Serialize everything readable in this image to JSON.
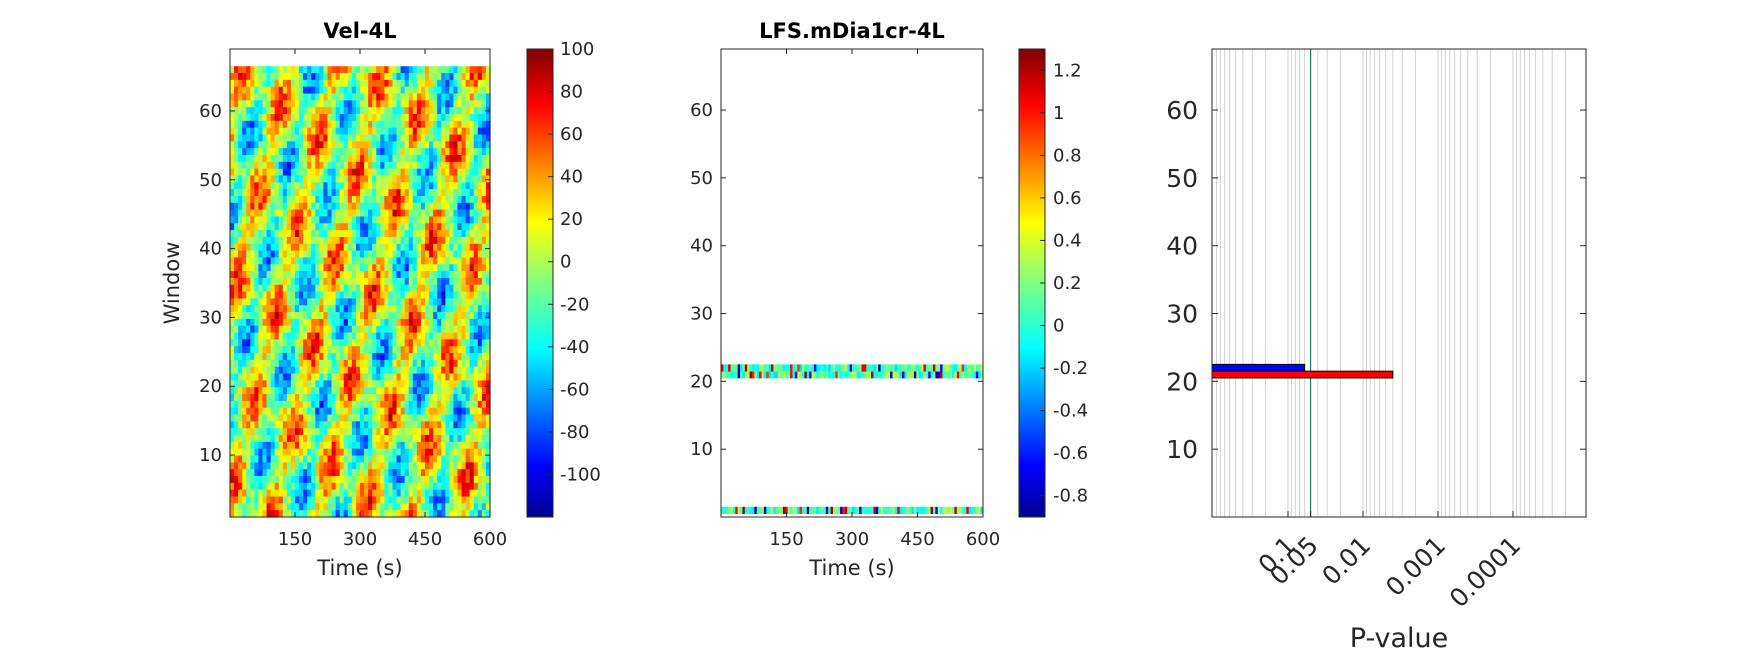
{
  "chart_data": [
    {
      "type": "heatmap",
      "title": "Vel-4L",
      "xlabel": "Time (s)",
      "ylabel": "Window",
      "xlim": [
        0,
        600
      ],
      "ylim": [
        1,
        69
      ],
      "xticks": [
        150,
        300,
        450,
        600
      ],
      "yticks": [
        10,
        20,
        30,
        40,
        50,
        60
      ],
      "data_rows": [
        1,
        66
      ],
      "colormap": "jet",
      "colorbar": {
        "range": [
          -120,
          100
        ],
        "ticks": [
          100,
          80,
          60,
          40,
          20,
          0,
          -20,
          -40,
          -60,
          -80,
          -100
        ]
      }
    },
    {
      "type": "heatmap",
      "title": "LFS.mDia1cr-4L",
      "xlabel": "Time (s)",
      "ylabel": "",
      "xlim": [
        0,
        600
      ],
      "ylim": [
        0,
        69
      ],
      "xticks": [
        150,
        300,
        450,
        600
      ],
      "yticks": [
        10,
        20,
        30,
        40,
        50,
        60
      ],
      "data_rows": [
        1,
        21,
        22
      ],
      "colormap": "jet",
      "colorbar": {
        "range": [
          -0.9,
          1.3
        ],
        "ticks": [
          1.2,
          1,
          0.8,
          0.6,
          0.4,
          0.2,
          0,
          -0.2,
          -0.4,
          -0.6,
          -0.8
        ]
      }
    },
    {
      "type": "bar",
      "orientation": "horizontal",
      "xlabel": "P-value",
      "ylabel": "",
      "xscale": "log-reversed",
      "xticks": [
        "0.1",
        "0.05",
        "0.01",
        "0.001",
        "0.0001"
      ],
      "yticks": [
        10,
        20,
        30,
        40,
        50,
        60
      ],
      "ylim": [
        0,
        69
      ],
      "threshold_line": 0.05,
      "series": [
        {
          "window": 22,
          "p_value": 0.06,
          "color": "#0000ff"
        },
        {
          "window": 21,
          "p_value": 0.004,
          "color": "#ff0000"
        }
      ]
    }
  ]
}
